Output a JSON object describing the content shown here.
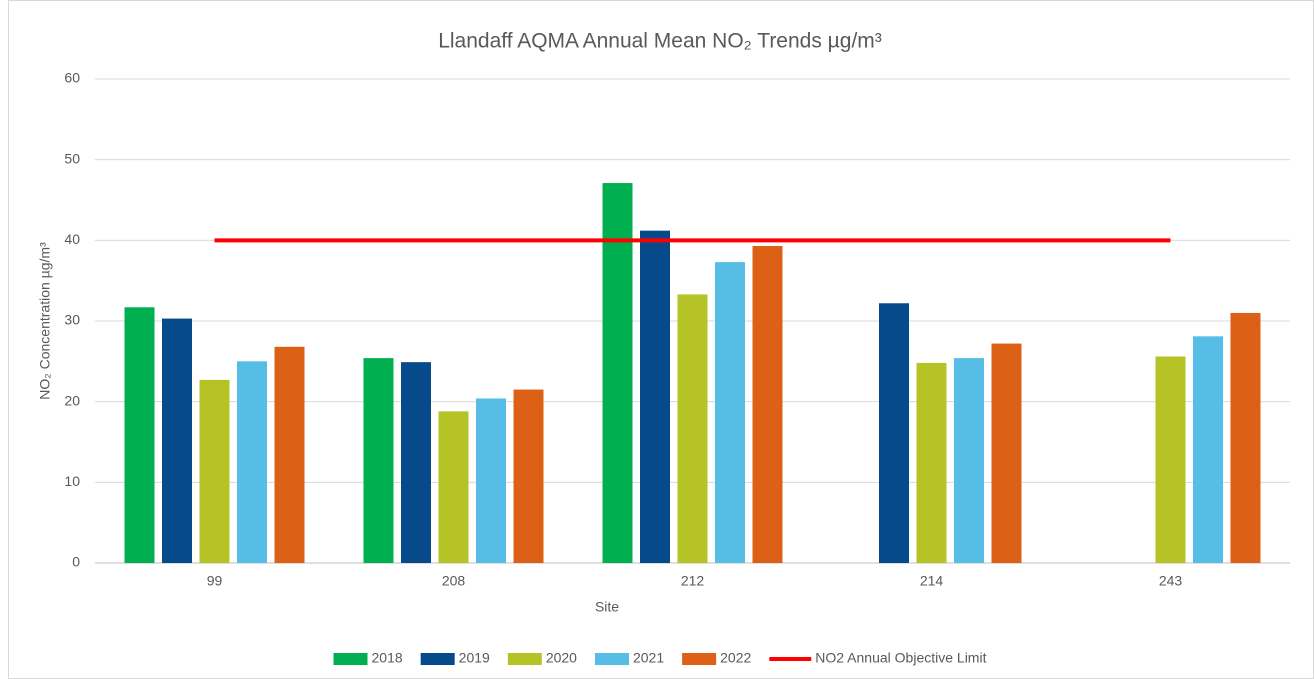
{
  "chart_data": {
    "type": "bar",
    "title": "Llandaff AQMA Annual Mean NO₂ Trends µg/m³",
    "x_label": "Site",
    "y_label": "NO₂ Concentration µg/m³",
    "categories": [
      "99",
      "208",
      "212",
      "214",
      "243"
    ],
    "series": [
      {
        "name": "2018",
        "color": "#00b050",
        "values": [
          31.7,
          25.4,
          47.1,
          null,
          null
        ]
      },
      {
        "name": "2019",
        "color": "#064a8c",
        "values": [
          30.3,
          24.9,
          41.2,
          32.2,
          null
        ]
      },
      {
        "name": "2020",
        "color": "#b5c326",
        "values": [
          22.7,
          18.8,
          33.3,
          24.8,
          25.6
        ]
      },
      {
        "name": "2021",
        "color": "#56bde6",
        "values": [
          25.0,
          20.4,
          37.3,
          25.4,
          28.1
        ]
      },
      {
        "name": "2022",
        "color": "#dc6016",
        "values": [
          26.8,
          21.5,
          39.3,
          27.2,
          31.0
        ]
      },
      {
        "name": "NO2 Annual Objective Limit",
        "color": "#ff0000",
        "type": "line",
        "values": [
          40,
          40,
          40,
          40,
          40
        ]
      }
    ],
    "ylim": [
      0,
      60
    ],
    "yticks": [
      0,
      10,
      20,
      30,
      40,
      50,
      60
    ],
    "grid": true,
    "legend": "bottom"
  }
}
